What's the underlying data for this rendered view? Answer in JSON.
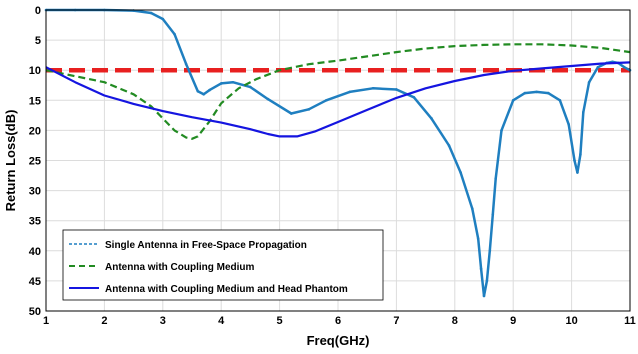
{
  "chart_data": {
    "type": "line",
    "xlabel": "Freq(GHz)",
    "ylabel": "Return Loss(dB)",
    "xlim": [
      1,
      11
    ],
    "ylim": [
      50,
      0
    ],
    "y_reversed": true,
    "xticks": [
      1,
      2,
      3,
      4,
      5,
      6,
      7,
      8,
      9,
      10,
      11
    ],
    "yticks": [
      0,
      5,
      10,
      15,
      20,
      25,
      30,
      35,
      40,
      45,
      50
    ],
    "grid": true,
    "legend_position": "bottom-left",
    "series": [
      {
        "name": "Single Antenna in Free-Space Propagation",
        "color": "#1f7fc0",
        "style": "solid-dotted-markers",
        "x": [
          1.0,
          1.5,
          2.0,
          2.5,
          2.8,
          3.0,
          3.2,
          3.4,
          3.6,
          3.7,
          3.8,
          4.0,
          4.2,
          4.5,
          4.8,
          5.2,
          5.5,
          5.8,
          6.2,
          6.6,
          7.0,
          7.3,
          7.6,
          7.9,
          8.1,
          8.3,
          8.4,
          8.45,
          8.5,
          8.55,
          8.6,
          8.65,
          8.7,
          8.8,
          9.0,
          9.2,
          9.4,
          9.6,
          9.8,
          9.95,
          10.05,
          10.1,
          10.15,
          10.2,
          10.3,
          10.45,
          10.6,
          10.7,
          10.8,
          10.9,
          11.0
        ],
        "y": [
          0,
          0,
          0,
          0.1,
          0.5,
          1.5,
          4,
          9,
          13.5,
          14,
          13.3,
          12.2,
          12,
          12.8,
          14.8,
          17.2,
          16.5,
          15,
          13.6,
          13,
          13.2,
          14.5,
          18,
          22.5,
          27,
          33,
          38,
          43,
          47.5,
          45,
          40,
          34,
          28,
          20,
          15,
          13.8,
          13.6,
          13.8,
          15,
          19,
          25,
          27,
          24,
          17,
          12,
          9.5,
          8.8,
          8.6,
          8.8,
          9.5,
          10
        ]
      },
      {
        "name": "Antenna with Coupling Medium",
        "color": "#228b22",
        "style": "dashed",
        "x": [
          1.0,
          1.5,
          2.0,
          2.5,
          2.8,
          3.0,
          3.2,
          3.4,
          3.5,
          3.6,
          3.8,
          4.0,
          4.3,
          4.6,
          5.0,
          5.5,
          6.0,
          6.5,
          7.0,
          7.5,
          8.0,
          8.5,
          9.0,
          9.5,
          10.0,
          10.5,
          11.0
        ],
        "y": [
          10,
          11,
          12,
          14,
          16,
          18,
          20,
          21.2,
          21.4,
          21,
          18.5,
          15.5,
          13,
          11.5,
          10,
          9,
          8.4,
          7.7,
          7,
          6.4,
          6,
          5.8,
          5.7,
          5.7,
          5.9,
          6.3,
          7
        ]
      },
      {
        "name": "Antenna with Coupling Medium and Head Phantom",
        "color": "#1515e0",
        "style": "solid",
        "x": [
          1.0,
          1.5,
          2.0,
          2.5,
          3.0,
          3.5,
          4.0,
          4.5,
          4.8,
          5.0,
          5.3,
          5.6,
          6.0,
          6.5,
          7.0,
          7.5,
          8.0,
          8.5,
          9.0,
          9.5,
          10.0,
          10.5,
          11.0
        ],
        "y": [
          9.5,
          12,
          14.2,
          15.6,
          16.8,
          17.8,
          18.7,
          19.8,
          20.6,
          21,
          21,
          20.2,
          18.6,
          16.6,
          14.6,
          13,
          11.8,
          10.8,
          10.1,
          9.7,
          9.3,
          8.9,
          8.7
        ]
      }
    ],
    "reference_lines": [
      {
        "y": 10,
        "color": "#e82020",
        "style": "thick-dashed"
      }
    ]
  }
}
